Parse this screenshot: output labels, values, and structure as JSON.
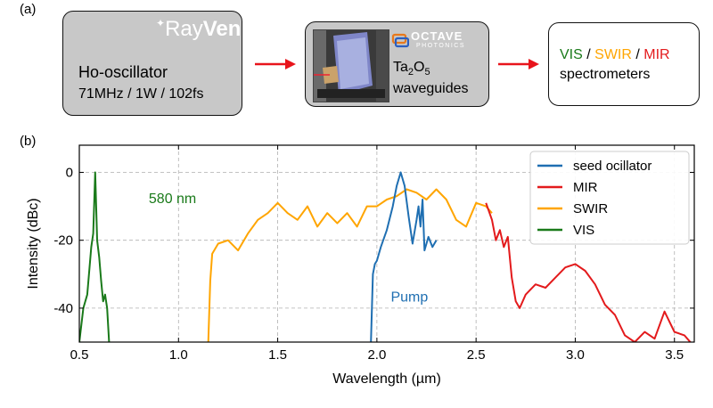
{
  "panel_a": {
    "label": "(a)",
    "oscillator": {
      "brand_prefix": "Ray",
      "brand_suffix": "Ven",
      "title": "Ho-oscillator",
      "specs": "71MHz / 1W / 102fs"
    },
    "waveguide": {
      "brand_line1": "OCTAVE",
      "brand_line2": "PHOTONICS",
      "material_ta": "Ta",
      "material_sub1": "2",
      "material_o": "O",
      "material_sub2": "5",
      "label": "waveguides"
    },
    "spectrometers": {
      "vis": "VIS",
      "swir": "SWIR",
      "mir": "MIR",
      "sep": " / ",
      "label": "spectrometers"
    }
  },
  "panel_b": {
    "label": "(b)"
  },
  "colors": {
    "box_gray": "#c8c8c8",
    "arrow": "#e8141b",
    "seed": "#1f6fb2",
    "mir": "#e31a1c",
    "swir": "#ffa500",
    "vis": "#1a7a1a"
  },
  "chart_data": {
    "type": "line",
    "xlabel": "Wavelength (µm)",
    "ylabel": "Intensity (dBc)",
    "xlim": [
      0.5,
      3.6
    ],
    "ylim": [
      -50,
      8
    ],
    "xticks": [
      "0.5",
      "1.0",
      "1.5",
      "2.0",
      "2.5",
      "3.0",
      "3.5"
    ],
    "yticks": [
      "0",
      "-20",
      "-40"
    ],
    "grid": true,
    "legend_position": "top-right",
    "annotations": [
      {
        "text": "580 nm",
        "x": 0.85,
        "y": -9,
        "color": "#1a7a1a"
      },
      {
        "text": "Pump",
        "x": 2.07,
        "y": -38,
        "color": "#1f6fb2"
      }
    ],
    "series": [
      {
        "name": "seed ocillator",
        "color": "#1f6fb2",
        "x": [
          1.97,
          1.98,
          1.99,
          2.0,
          2.02,
          2.05,
          2.08,
          2.1,
          2.12,
          2.14,
          2.16,
          2.18,
          2.2,
          2.21,
          2.22,
          2.23,
          2.24,
          2.26,
          2.28,
          2.3
        ],
        "y": [
          -50,
          -30,
          -27,
          -26,
          -22,
          -17,
          -10,
          -4,
          0,
          -4,
          -13,
          -21,
          -14,
          -10,
          -16,
          -8,
          -23,
          -19,
          -22,
          -20
        ]
      },
      {
        "name": "MIR",
        "color": "#e31a1c",
        "x": [
          2.55,
          2.58,
          2.6,
          2.62,
          2.64,
          2.66,
          2.68,
          2.7,
          2.72,
          2.75,
          2.8,
          2.85,
          2.9,
          2.95,
          3.0,
          3.05,
          3.1,
          3.15,
          3.2,
          3.25,
          3.3,
          3.35,
          3.4,
          3.45,
          3.5,
          3.55,
          3.58
        ],
        "y": [
          -9,
          -14,
          -20,
          -17,
          -22,
          -19,
          -31,
          -38,
          -40,
          -36,
          -33,
          -34,
          -31,
          -28,
          -27,
          -29,
          -33,
          -39,
          -42,
          -48,
          -50,
          -47,
          -49,
          -41,
          -47,
          -48,
          -50
        ]
      },
      {
        "name": "SWIR",
        "color": "#ffa500",
        "x": [
          1.15,
          1.16,
          1.17,
          1.2,
          1.25,
          1.3,
          1.35,
          1.4,
          1.45,
          1.5,
          1.55,
          1.6,
          1.65,
          1.7,
          1.75,
          1.8,
          1.85,
          1.9,
          1.95,
          2.0,
          2.05,
          2.1,
          2.15,
          2.2,
          2.25,
          2.3,
          2.35,
          2.4,
          2.45,
          2.5,
          2.55,
          2.58
        ],
        "y": [
          -50,
          -32,
          -24,
          -21,
          -20,
          -23,
          -18,
          -14,
          -12,
          -9,
          -12,
          -14,
          -10,
          -16,
          -12,
          -15,
          -12,
          -16,
          -10,
          -10,
          -8,
          -7,
          -5,
          -6,
          -8,
          -5,
          -8,
          -14,
          -16,
          -9,
          -10,
          -12
        ]
      },
      {
        "name": "VIS",
        "color": "#1a7a1a",
        "x": [
          0.5,
          0.52,
          0.54,
          0.56,
          0.57,
          0.58,
          0.59,
          0.6,
          0.61,
          0.62,
          0.63,
          0.64,
          0.65
        ],
        "y": [
          -50,
          -40,
          -36,
          -22,
          -18,
          0,
          -20,
          -25,
          -32,
          -38,
          -36,
          -40,
          -50
        ]
      }
    ]
  }
}
